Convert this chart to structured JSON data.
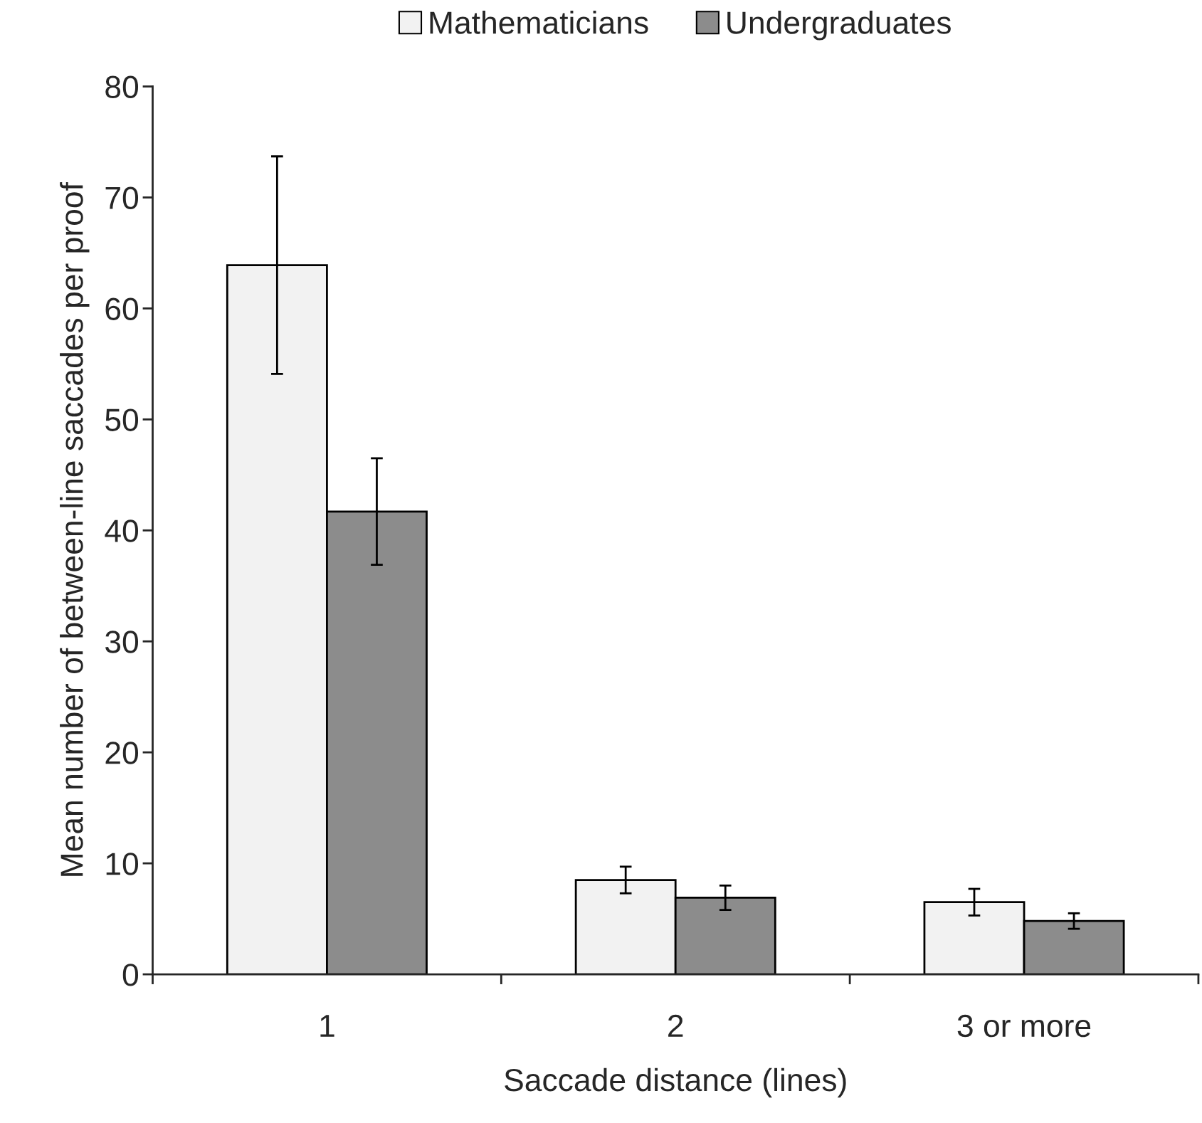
{
  "chart_data": {
    "type": "bar",
    "xlabel": "Saccade distance (lines)",
    "ylabel": "Mean number of between-line saccades per proof",
    "categories": [
      "1",
      "2",
      "3 or more"
    ],
    "series": [
      {
        "name": "Mathematicians",
        "color": "#f2f2f2",
        "values": [
          63.9,
          8.5,
          6.5
        ],
        "errors": [
          9.8,
          1.2,
          1.2
        ]
      },
      {
        "name": "Undergraduates",
        "color": "#8c8c8c",
        "values": [
          41.7,
          6.9,
          4.8
        ],
        "errors": [
          4.8,
          1.1,
          0.7
        ]
      }
    ],
    "ylim": [
      0,
      80
    ],
    "yticks": [
      0,
      10,
      20,
      30,
      40,
      50,
      60,
      70,
      80
    ],
    "grid": false,
    "legend": "top"
  }
}
